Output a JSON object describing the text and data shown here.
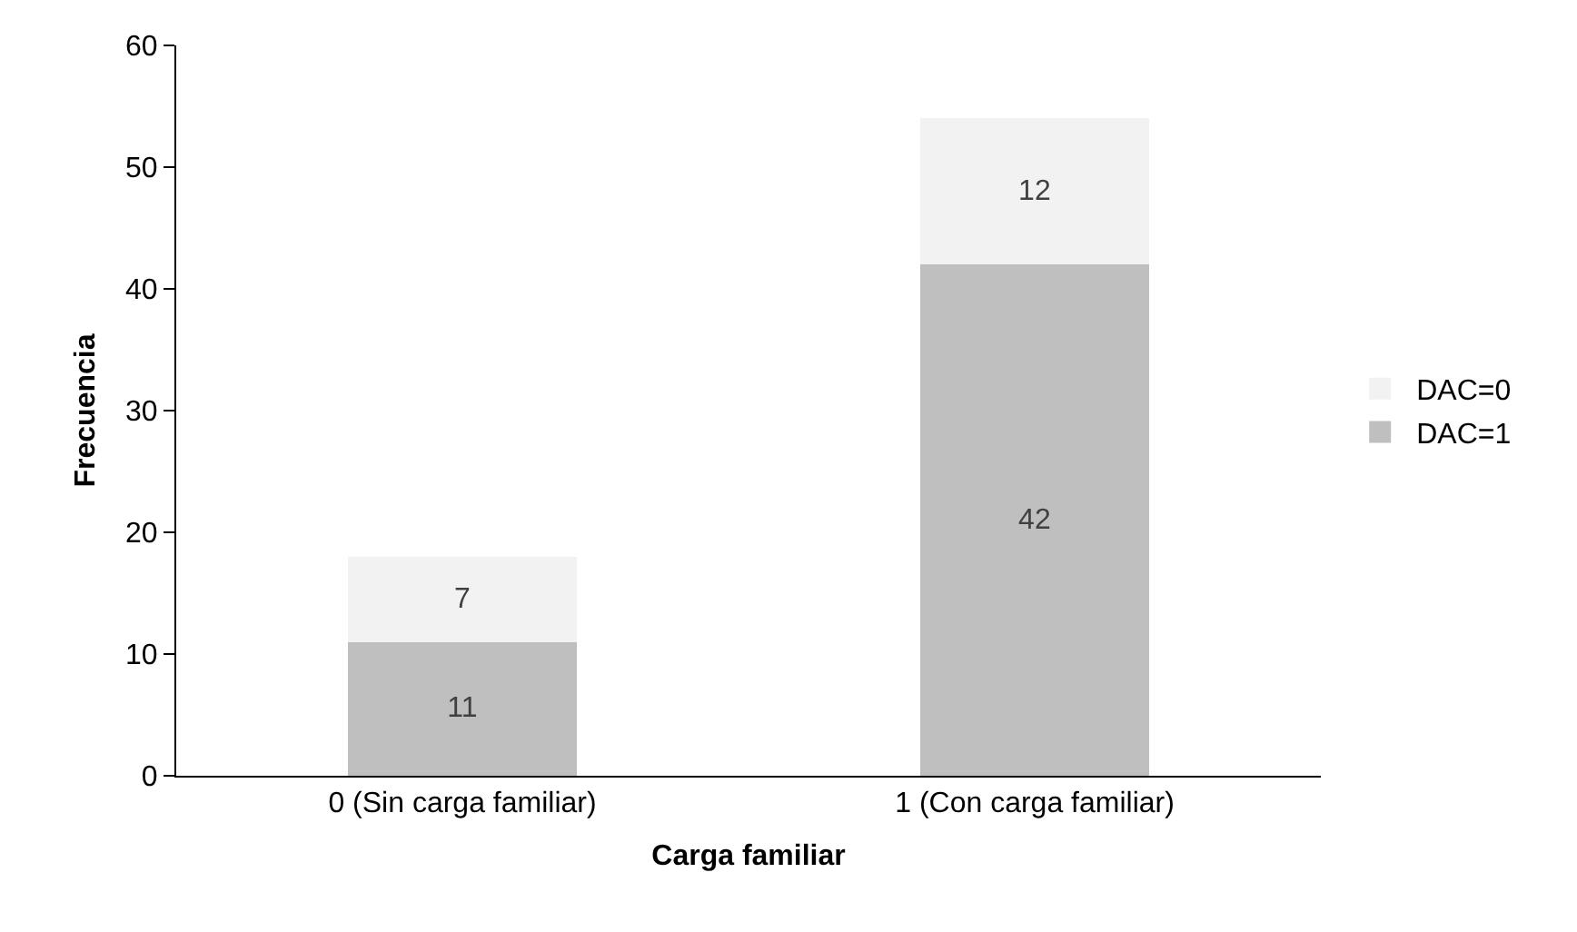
{
  "chart_data": {
    "type": "bar",
    "stacked": true,
    "xlabel": "Carga familiar",
    "ylabel": "Frecuencia",
    "categories": [
      "0 (Sin carga familiar)",
      "1 (Con carga familiar)"
    ],
    "series": [
      {
        "name": "DAC=1",
        "color": "#bfbfbf",
        "values": [
          11,
          42
        ]
      },
      {
        "name": "DAC=0",
        "color": "#f2f2f2",
        "values": [
          7,
          12
        ]
      }
    ],
    "ylim": [
      0,
      60
    ],
    "yticks": [
      0,
      10,
      20,
      30,
      40,
      50,
      60
    ],
    "grid": false,
    "legend": "right",
    "data_labels": true
  }
}
